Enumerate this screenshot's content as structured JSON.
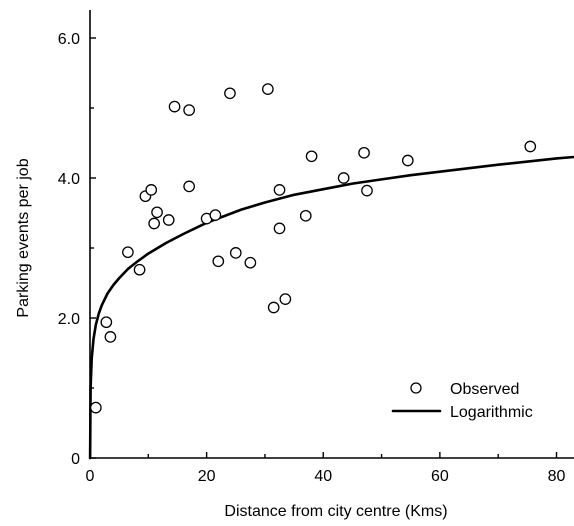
{
  "chart_data": {
    "type": "scatter",
    "xlabel": "Distance from city centre (Kms)",
    "ylabel": "Parking events per job",
    "xlim": [
      0,
      83
    ],
    "ylim": [
      0,
      6.4
    ],
    "x_ticks": [
      0,
      20,
      40,
      60,
      80
    ],
    "x_tick_labels": [
      "0",
      "20",
      "40",
      "60",
      "80"
    ],
    "y_ticks": [
      0,
      2,
      4,
      6
    ],
    "y_tick_labels": [
      "0",
      "2.0",
      "4.0",
      "6.0"
    ],
    "grid": false,
    "legend_position": "bottom-right",
    "series": [
      {
        "name": "Observed",
        "kind": "scatter",
        "marker": "open-circle",
        "x": [
          1,
          2.8,
          3.5,
          6.5,
          8.5,
          9.5,
          10.5,
          11,
          11.5,
          13.5,
          14.5,
          17,
          17,
          20,
          21.5,
          22,
          24,
          25,
          27.5,
          30.5,
          31.5,
          32.5,
          32.5,
          33.5,
          37,
          38,
          43.5,
          47,
          47.5,
          54.5,
          75.5
        ],
        "y": [
          0.72,
          1.94,
          1.73,
          2.94,
          2.69,
          3.74,
          3.83,
          3.35,
          3.51,
          3.4,
          5.02,
          3.88,
          4.97,
          3.42,
          3.47,
          2.81,
          5.21,
          2.93,
          2.79,
          5.27,
          2.15,
          3.83,
          3.28,
          2.27,
          3.46,
          4.31,
          4.0,
          4.36,
          3.82,
          4.25,
          4.45
        ]
      },
      {
        "name": "Logarithmic",
        "kind": "line",
        "x": [
          0.02,
          0.1,
          0.3,
          0.6,
          1,
          1.5,
          2,
          3,
          4,
          5,
          6.5,
          8,
          10,
          13,
          16,
          20,
          26,
          30,
          35,
          40,
          45,
          50,
          55,
          60,
          70,
          80,
          83
        ],
        "y": [
          0.0,
          1.0,
          1.42,
          1.7,
          1.9,
          2.06,
          2.18,
          2.35,
          2.47,
          2.57,
          2.7,
          2.8,
          2.92,
          3.07,
          3.2,
          3.36,
          3.55,
          3.65,
          3.76,
          3.84,
          3.92,
          3.98,
          4.04,
          4.09,
          4.19,
          4.28,
          4.3
        ]
      }
    ]
  }
}
